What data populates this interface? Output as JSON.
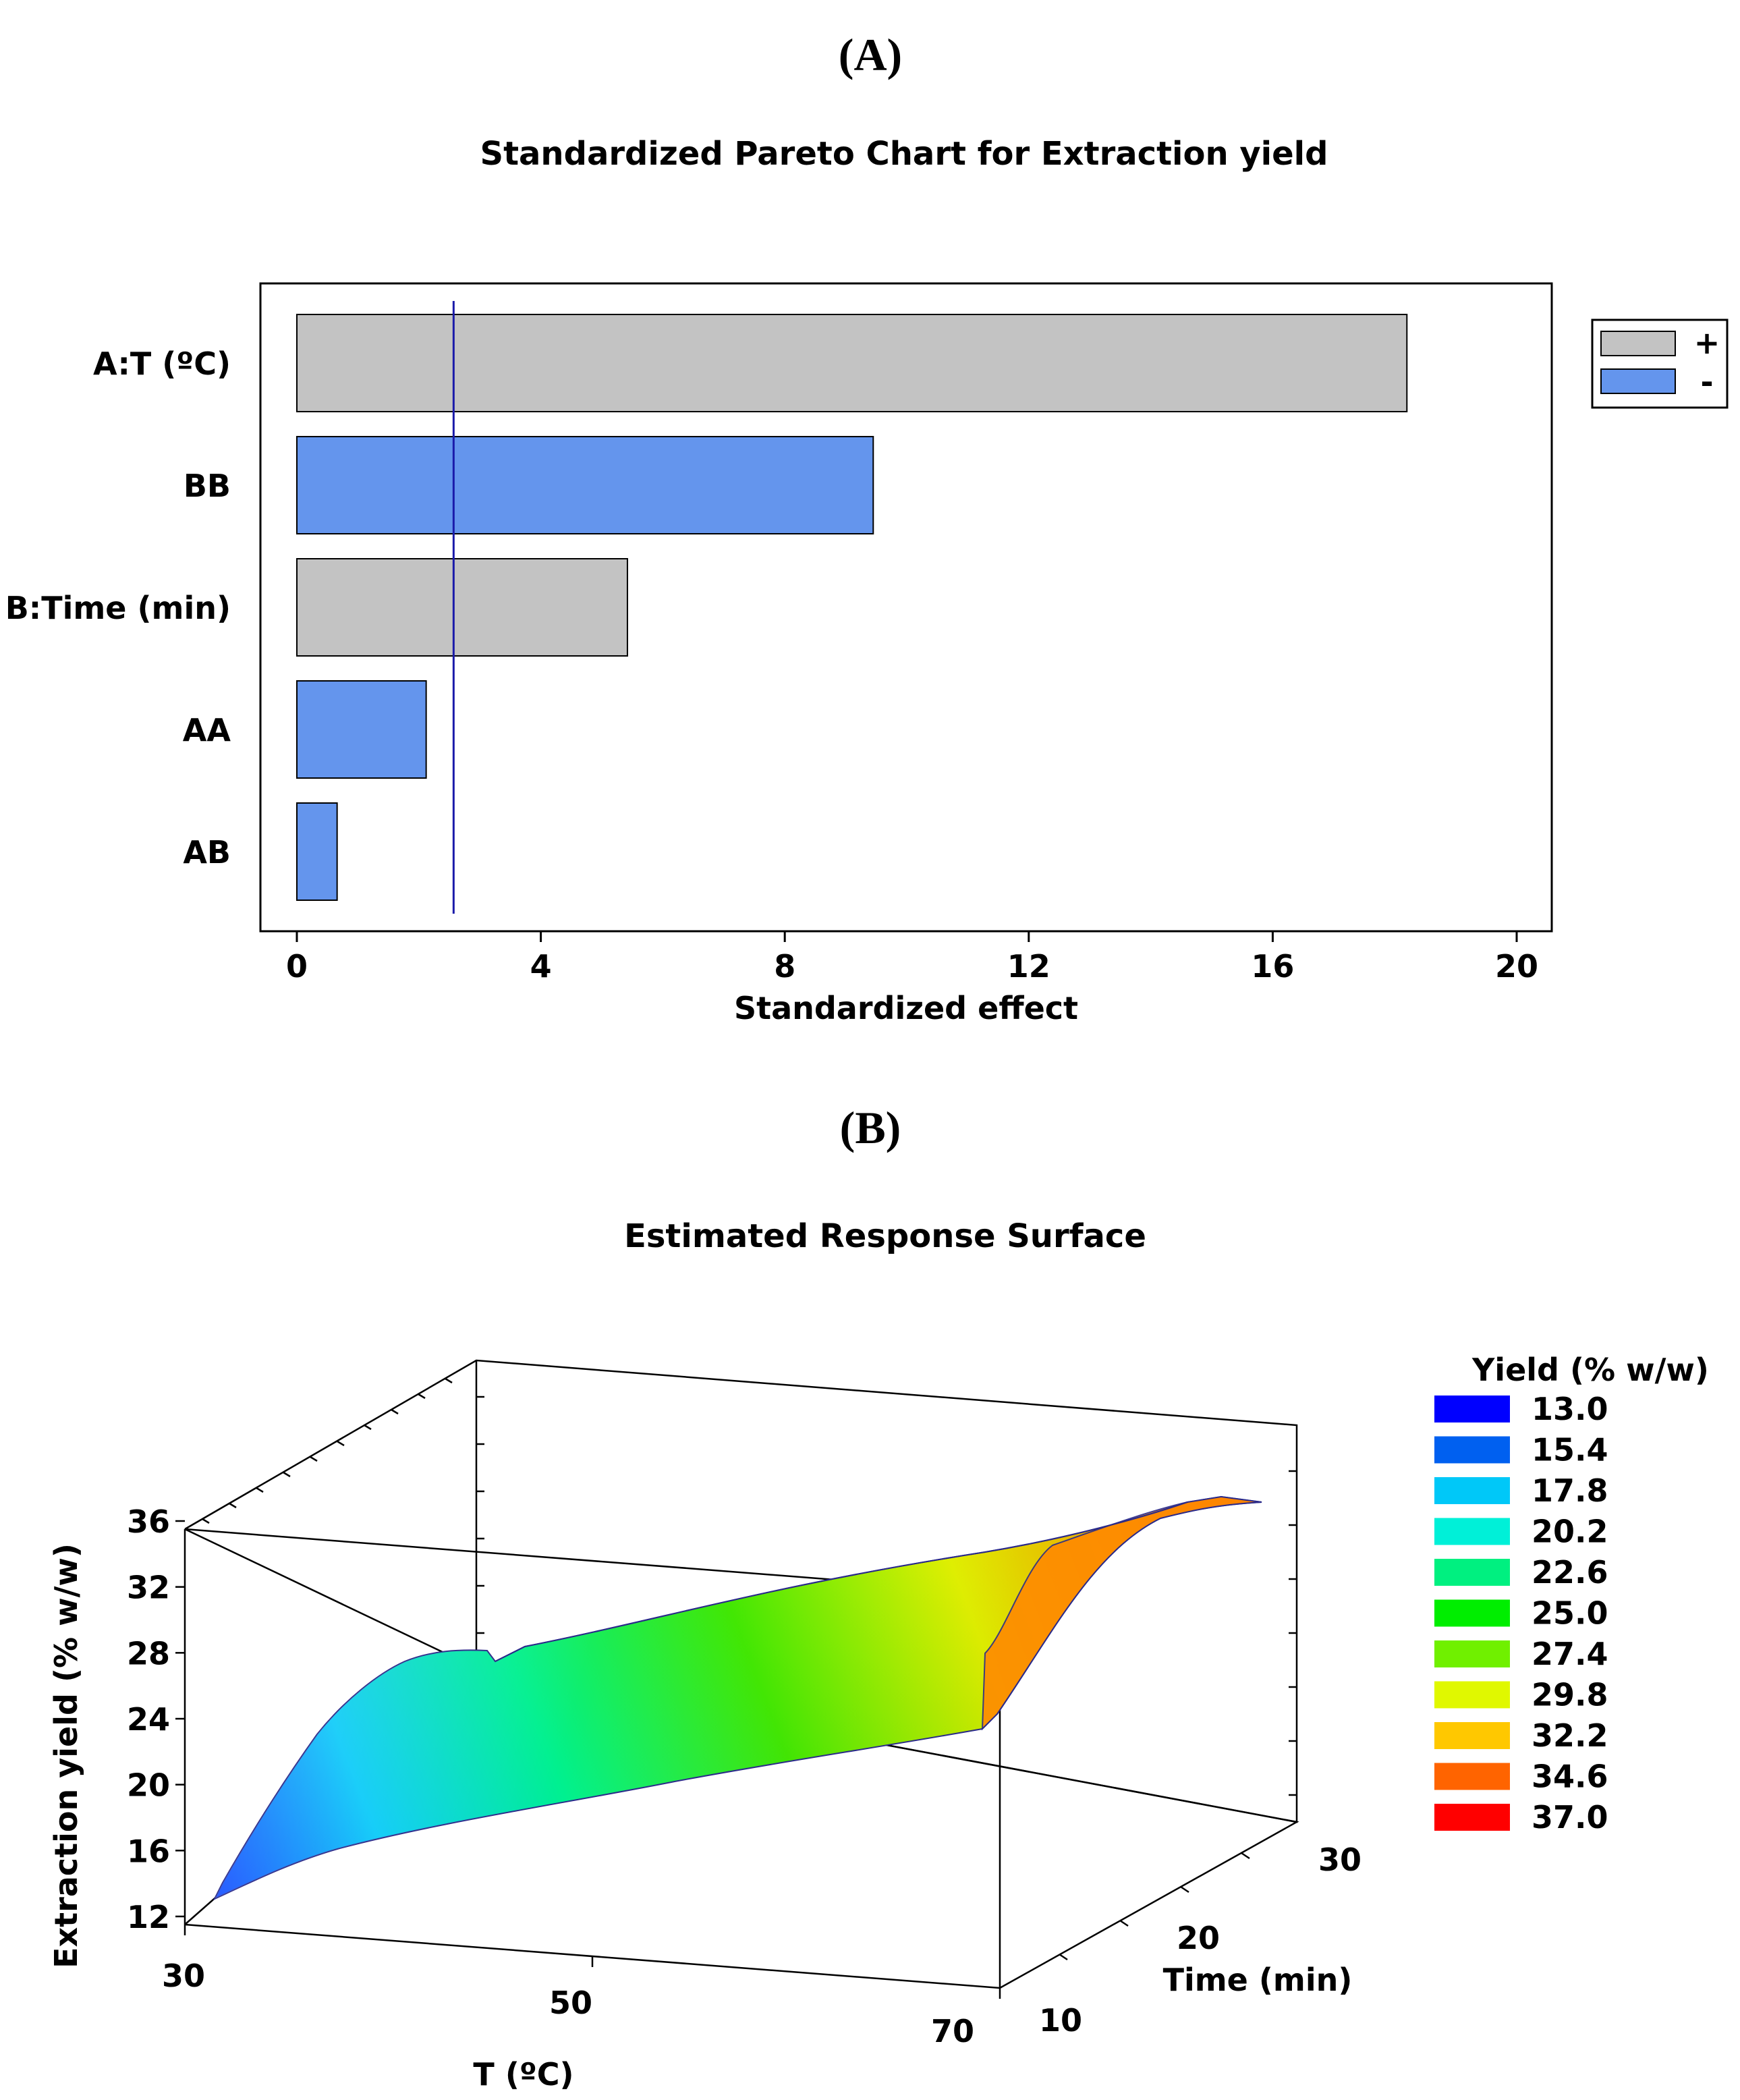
{
  "panels": {
    "a_label": "(A)",
    "b_label": "(B)"
  },
  "chart_data": [
    {
      "type": "bar",
      "orientation": "horizontal",
      "title": "Standardized Pareto Chart for Extraction yield",
      "xlabel": "Standardized effect",
      "ylabel": "",
      "categories": [
        "A:T (ºC)",
        "BB",
        "B:Time (min)",
        "AA",
        "AB"
      ],
      "values": [
        18.2,
        9.45,
        5.42,
        2.12,
        0.66
      ],
      "signs": [
        "+",
        "-",
        "+",
        "-",
        "-"
      ],
      "xlim": [
        0,
        20
      ],
      "xticks": [
        0,
        4,
        8,
        12,
        16,
        20
      ],
      "reference_line": 2.57,
      "legend": {
        "position": "top-right",
        "entries": [
          {
            "label": "+",
            "color": "#c3c3c3"
          },
          {
            "label": "-",
            "color": "#6495ed"
          }
        ]
      }
    },
    {
      "type": "surface",
      "title": "Estimated Response Surface",
      "xlabel": "T (ºC)",
      "ylabel": "Time (min)",
      "zlabel": "Extraction yield (% w/w)",
      "xticks": [
        30,
        50,
        70
      ],
      "yticks": [
        10,
        20,
        30
      ],
      "zticks": [
        12,
        16,
        20,
        24,
        28,
        32,
        36
      ],
      "xlim": [
        30,
        70
      ],
      "ylim": [
        10,
        30
      ],
      "zlim": [
        12,
        36
      ],
      "model": {
        "grid_T": [
          30,
          40,
          50,
          60,
          70
        ],
        "grid_time": [
          10,
          20,
          30
        ],
        "yield_estimates": [
          [
            13.2,
            25.0,
            25.6
          ],
          [
            16.7,
            28.7,
            29.4
          ],
          [
            20.4,
            31.2,
            31.8
          ],
          [
            22.6,
            33.2,
            34.4
          ],
          [
            24.7,
            36.5,
            36.2
          ]
        ]
      },
      "legend": {
        "title": "Yield (% w/w)",
        "entries": [
          {
            "label": "13.0",
            "color": "#0000ff"
          },
          {
            "label": "15.4",
            "color": "#0060f0"
          },
          {
            "label": "17.8",
            "color": "#00c8f8"
          },
          {
            "label": "20.2",
            "color": "#00f0d8"
          },
          {
            "label": "22.6",
            "color": "#00f080"
          },
          {
            "label": "25.0",
            "color": "#00ee00"
          },
          {
            "label": "27.4",
            "color": "#70f000"
          },
          {
            "label": "29.8",
            "color": "#e0f800"
          },
          {
            "label": "32.2",
            "color": "#ffc800"
          },
          {
            "label": "34.6",
            "color": "#ff6400"
          },
          {
            "label": "37.0",
            "color": "#ff0000"
          }
        ]
      }
    }
  ]
}
